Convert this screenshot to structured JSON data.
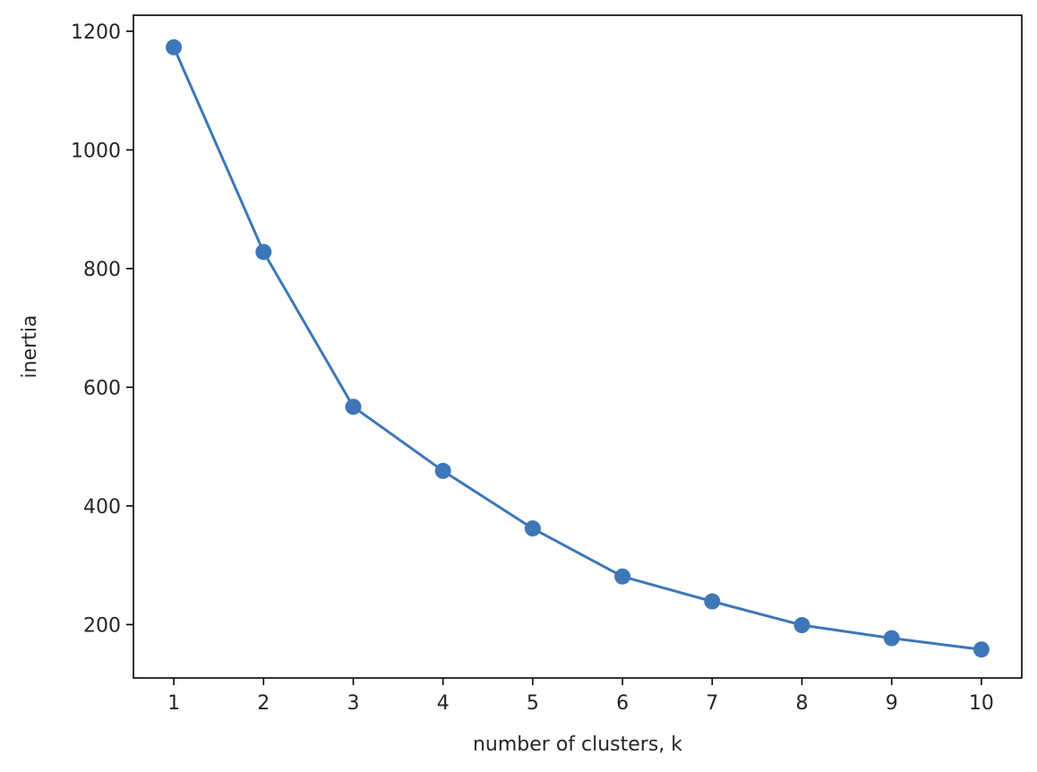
{
  "chart_data": {
    "type": "line",
    "title": "",
    "xlabel": "number of clusters, k",
    "ylabel": "inertia",
    "x": [
      1,
      2,
      3,
      4,
      5,
      6,
      7,
      8,
      9,
      10
    ],
    "series": [
      {
        "values": [
          1173,
          828,
          567,
          459,
          362,
          281,
          239,
          199,
          177,
          158
        ]
      }
    ],
    "xticks": [
      1,
      2,
      3,
      4,
      5,
      6,
      7,
      8,
      9,
      10
    ],
    "yticks": [
      200,
      400,
      600,
      800,
      1000,
      1200
    ],
    "xlim": [
      0.55,
      10.45
    ],
    "ylim": [
      110,
      1227
    ],
    "grid": false,
    "line_color": "#3d77b7",
    "marker": "circle"
  }
}
